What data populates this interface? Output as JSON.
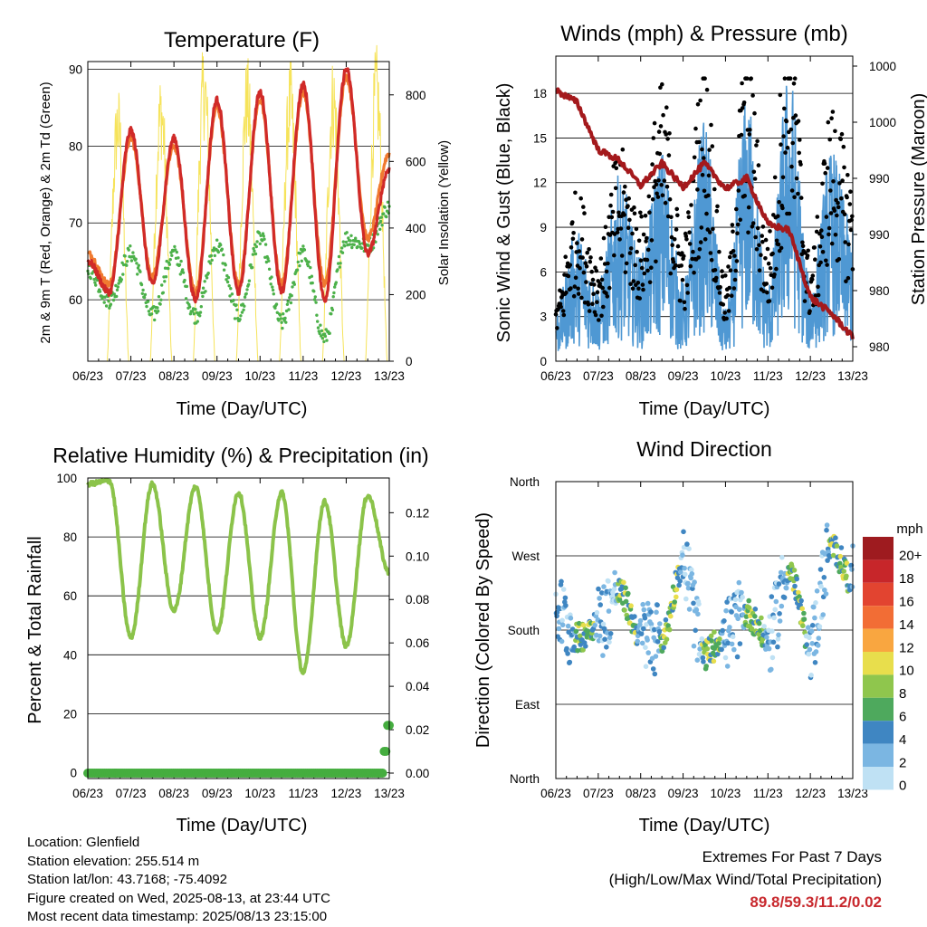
{
  "x_tick_labels": [
    "06/23",
    "07/23",
    "08/23",
    "09/23",
    "10/23",
    "11/23",
    "12/23",
    "13/23"
  ],
  "colors": {
    "temp_2m": "#d02a28",
    "temp_9m": "#f07a30",
    "dewpoint": "#4cb14a",
    "insolation": "#f6e35a",
    "wind": "#4f98d3",
    "gust": "#000000",
    "pressure": "#a4191c",
    "rh": "#8bc34a",
    "precip": "#45ad3f",
    "extremes": "#c8282d"
  },
  "chart_data": [
    {
      "type": "line",
      "title": "Temperature (F)",
      "xlabel": "Time (Day/UTC)",
      "ylabel": "2m & 9m T (Red, Orange) & 2m Td (Green)",
      "ylabel_right": "Solar Insolation (Yellow)",
      "ylim": [
        52,
        91
      ],
      "y_ticks": [
        60,
        70,
        80,
        90
      ],
      "ylim_right": [
        0,
        900
      ],
      "y_ticks_right": [
        0,
        200,
        400,
        600,
        800
      ],
      "x": [
        0,
        0.5,
        1,
        1.5,
        2,
        2.5,
        3,
        3.5,
        4,
        4.5,
        5,
        5.5,
        6,
        6.5,
        7
      ],
      "series": [
        {
          "name": "2m T",
          "values": [
            65,
            61,
            82,
            62,
            81,
            60,
            86,
            61,
            87,
            61,
            88,
            60,
            90,
            66,
            77
          ]
        },
        {
          "name": "9m T",
          "values": [
            66,
            62,
            81,
            63,
            80,
            61,
            85,
            62,
            86,
            62,
            87,
            62,
            89,
            68,
            79
          ]
        },
        {
          "name": "2m Td",
          "values": [
            64,
            60,
            66,
            58,
            66,
            58,
            67,
            58,
            68,
            57,
            66,
            55,
            68,
            67,
            72
          ]
        },
        {
          "name": "Solar Insolation",
          "axis": "right",
          "peaks": [
            760,
            800,
            880,
            840,
            830,
            840,
            870,
            790
          ]
        }
      ]
    },
    {
      "type": "scatter",
      "title": "Winds (mph) & Pressure (mb)",
      "xlabel": "Time (Day/UTC)",
      "ylabel": "Sonic Wind & Gust (Blue, Black)",
      "ylabel_right": "Station Pressure (Maroon)",
      "ylim": [
        0,
        20.5
      ],
      "y_ticks": [
        0,
        3,
        6,
        9,
        12,
        15,
        18
      ],
      "y_ticks_right": [
        "980",
        "980",
        "990",
        "990",
        "1000",
        "1000"
      ],
      "x": [
        0,
        0.5,
        1,
        1.5,
        2,
        2.5,
        3,
        3.5,
        4,
        4.5,
        5,
        5.5,
        6,
        6.5,
        7
      ],
      "series": [
        {
          "name": "Sonic Wind",
          "values": [
            2,
            5,
            3,
            7,
            4,
            8,
            3,
            9,
            2,
            10,
            3,
            11,
            3,
            8,
            5
          ]
        },
        {
          "name": "Gust",
          "values": [
            3,
            8,
            5,
            10,
            7,
            13,
            6,
            14,
            4,
            15,
            6,
            17,
            5,
            12,
            9
          ]
        },
        {
          "name": "Station Pressure",
          "values": [
            18.2,
            17.4,
            14.2,
            13.5,
            11.8,
            13.3,
            11.7,
            13.3,
            11.6,
            12.3,
            9.2,
            8.8,
            4.3,
            3.2,
            1.6
          ]
        }
      ]
    },
    {
      "type": "line",
      "title": "Relative Humidity (%) & Precipitation (in)",
      "xlabel": "Time (Day/UTC)",
      "ylabel": "Percent & Total Rainfall",
      "ylim": [
        -2,
        100
      ],
      "y_ticks": [
        0,
        20,
        40,
        60,
        80,
        100
      ],
      "ylim_right": [
        -0.0025,
        0.136
      ],
      "y_ticks_right": [
        "0.00",
        "0.02",
        "0.04",
        "0.06",
        "0.08",
        "0.10",
        "0.12"
      ],
      "x": [
        0,
        0.5,
        1,
        1.5,
        2,
        2.5,
        3,
        3.5,
        4,
        4.5,
        5,
        5.5,
        6,
        6.5,
        7
      ],
      "series": [
        {
          "name": "Relative Humidity",
          "values": [
            98,
            99,
            46,
            98,
            55,
            97,
            48,
            95,
            46,
            95,
            34,
            92,
            43,
            94,
            68
          ]
        },
        {
          "name": "Total Precipitation",
          "axis": "right",
          "steps": [
            [
              0,
              0
            ],
            [
              6.85,
              0.01
            ],
            [
              6.95,
              0.022
            ],
            [
              7,
              0.022
            ]
          ]
        }
      ]
    },
    {
      "type": "scatter",
      "title": "Wind Direction",
      "xlabel": "Time (Day/UTC)",
      "ylabel": "Direction (Colored By Speed)",
      "y_tick_labels": [
        "North",
        "East",
        "South",
        "West",
        "North"
      ],
      "ylim": [
        0,
        360
      ],
      "legend_title": "mph",
      "legend_labels": [
        "20+",
        "18",
        "16",
        "14",
        "12",
        "10",
        "8",
        "6",
        "4",
        "2",
        "0"
      ],
      "legend_colors": [
        "#9e1b1f",
        "#c7262a",
        "#e24430",
        "#f26d35",
        "#f9a640",
        "#e8de4c",
        "#8fc64d",
        "#4ea95d",
        "#3f86c2",
        "#7bb6e2",
        "#bfe1f4"
      ],
      "legend_position": "right",
      "series": [
        {
          "name": "Direction",
          "values": [
            205,
            170,
            190,
            225,
            175,
            170,
            260,
            150,
            175,
            200,
            170,
            250,
            165,
            280,
            240
          ]
        }
      ]
    }
  ],
  "info": {
    "location": "Location: Glenfield",
    "elevation": "Station elevation: 255.514 m",
    "latlon": "Station lat/lon: 43.7168; -75.4092",
    "created": "Figure created on Wed, 2025-08-13, at 23:44 UTC",
    "latest": "Most recent data timestamp: 2025/08/13 23:15:00",
    "extremes_title": "Extremes For Past 7 Days",
    "extremes_subtitle": "(High/Low/Max Wind/Total Precipitation)",
    "extremes_values": "89.8/59.3/11.2/0.02"
  }
}
